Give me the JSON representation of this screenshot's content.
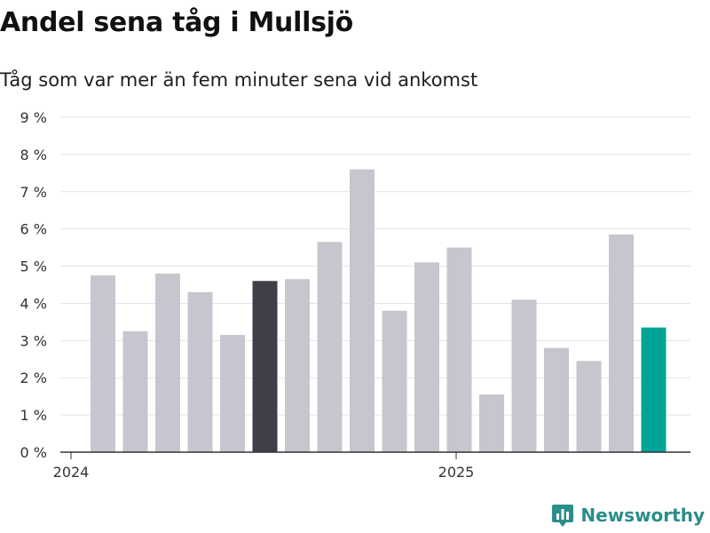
{
  "chart_data": {
    "type": "bar",
    "title": "Andel sena tåg i Mullsjö",
    "subtitle": "Tåg som var mer än fem minuter sena vid ankomst",
    "x_tick_labels": [
      "2024",
      "2025"
    ],
    "y_tick_labels": [
      "0 %",
      "1 %",
      "2 %",
      "3 %",
      "4 %",
      "5 %",
      "6 %",
      "7 %",
      "8 %",
      "9 %"
    ],
    "ylim": [
      0,
      9
    ],
    "grid": true,
    "values": [
      4.75,
      3.25,
      4.8,
      4.3,
      3.15,
      4.6,
      4.65,
      5.65,
      7.6,
      3.8,
      5.1,
      5.5,
      1.55,
      4.1,
      2.8,
      2.45,
      5.85,
      3.35
    ],
    "colors": {
      "default": "#c7c6ce",
      "highlight": "#3f3e49",
      "latest": "#00a496"
    },
    "highlight_index": 5,
    "latest_index": 17
  },
  "brand": {
    "name": "Newsworthy",
    "color": "#2a8e8a",
    "icon": "bar-chart-pin-icon"
  }
}
